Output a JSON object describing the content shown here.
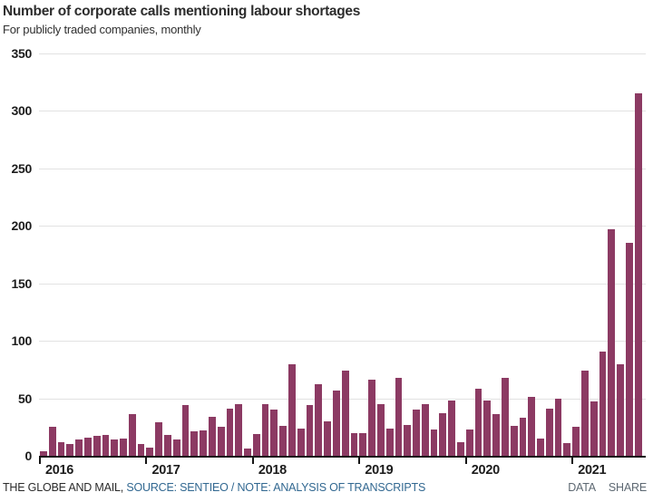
{
  "header": {
    "title": "Number of corporate calls mentioning labour shortages",
    "subtitle": "For publicly traded companies, monthly"
  },
  "footer": {
    "attribution": "THE GLOBE AND MAIL, ",
    "source_note": "SOURCE: SENTIEO / NOTE: ANALYSIS OF TRANSCRIPTS",
    "data_label": "DATA",
    "share_label": "SHARE"
  },
  "colors": {
    "bar": "#8c3a63",
    "source_link": "#326891",
    "footer_action": "#5d6872",
    "gridline": "#e2e2e2",
    "axis": "#151515"
  },
  "chart_data": {
    "type": "bar",
    "title": "Number of corporate calls mentioning labour shortages",
    "subtitle": "For publicly traded companies, monthly",
    "xlabel": "",
    "ylabel": "",
    "ylim": [
      0,
      350
    ],
    "yticks": [
      0,
      50,
      100,
      150,
      200,
      250,
      300,
      350
    ],
    "grid": true,
    "legend": false,
    "frequency": "monthly",
    "bar_color": "#8c3a63",
    "categories": [
      "2016",
      "2017",
      "2018",
      "2019",
      "2020",
      "2021"
    ],
    "years": [
      {
        "year": "2016",
        "values": [
          4,
          25,
          12,
          10,
          14,
          16,
          17,
          18,
          14,
          15,
          36,
          10
        ]
      },
      {
        "year": "2017",
        "values": [
          7,
          29,
          18,
          14,
          44,
          21,
          22,
          34,
          25,
          41,
          45,
          6
        ]
      },
      {
        "year": "2018",
        "values": [
          19,
          45,
          40,
          26,
          80,
          24,
          44,
          62,
          30,
          57,
          74,
          20
        ]
      },
      {
        "year": "2019",
        "values": [
          20,
          66,
          45,
          24,
          68,
          27,
          40,
          45,
          23,
          37,
          48,
          12
        ]
      },
      {
        "year": "2020",
        "values": [
          23,
          58,
          48,
          36,
          68,
          26,
          33,
          51,
          15,
          41,
          50,
          11
        ]
      },
      {
        "year": "2021",
        "values": [
          25,
          74,
          47,
          91,
          197,
          80,
          185,
          315
        ]
      }
    ]
  }
}
